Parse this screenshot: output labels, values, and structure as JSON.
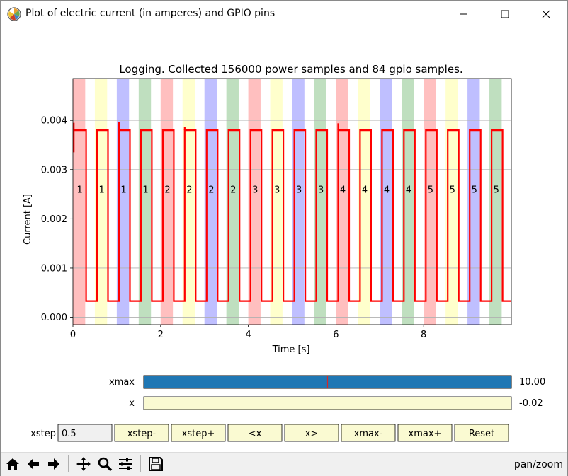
{
  "window": {
    "title": "Plot of electric current (in amperes) and GPIO pins",
    "icon": "matplotlib-icon",
    "controls": [
      "minimize-icon",
      "maximize-icon",
      "close-icon"
    ]
  },
  "chart_data": {
    "type": "line",
    "title": "Logging. Collected 156000 power samples and 84 gpio samples.",
    "xlabel": "Time [s]",
    "ylabel": "Current [A]",
    "xlim": [
      0,
      10
    ],
    "ylim": [
      -0.00015,
      0.00485
    ],
    "xticks": [
      0,
      2,
      4,
      6,
      8
    ],
    "xtick_labels": [
      "0",
      "2",
      "4",
      "6",
      "8"
    ],
    "yticks": [
      0.0,
      0.001,
      0.002,
      0.003,
      0.004
    ],
    "ytick_labels": [
      "0.000",
      "0.001",
      "0.002",
      "0.003",
      "0.004"
    ],
    "grid": "horizontal",
    "series": [
      {
        "color": "#ff0000",
        "high_value": 0.0038,
        "low_value": 0.00033,
        "pulses": [
          [
            0.02,
            0.3
          ],
          [
            0.55,
            0.8
          ],
          [
            1.05,
            1.3
          ],
          [
            1.55,
            1.8
          ],
          [
            2.05,
            2.3
          ],
          [
            2.55,
            2.8
          ],
          [
            3.05,
            3.3
          ],
          [
            3.55,
            3.8
          ],
          [
            4.05,
            4.3
          ],
          [
            4.55,
            4.8
          ],
          [
            5.05,
            5.3
          ],
          [
            5.55,
            5.8
          ],
          [
            6.05,
            6.3
          ],
          [
            6.55,
            6.8
          ],
          [
            7.05,
            7.3
          ],
          [
            7.55,
            7.8
          ],
          [
            8.05,
            8.3
          ],
          [
            8.55,
            8.8
          ],
          [
            9.05,
            9.3
          ],
          [
            9.55,
            9.8
          ]
        ],
        "spikes": [
          [
            0.02,
            0.00395
          ],
          [
            1.05,
            0.00397
          ],
          [
            2.55,
            0.00386
          ],
          [
            6.05,
            0.00394
          ]
        ],
        "start_dip": 0.00335
      }
    ],
    "gpio_spans": [
      {
        "x0": 0.0,
        "x1": 0.28,
        "color": "#ff8080",
        "label": "1"
      },
      {
        "x0": 0.5,
        "x1": 0.78,
        "color": "#ffff99",
        "label": "1"
      },
      {
        "x0": 1.0,
        "x1": 1.28,
        "color": "#8080ff",
        "label": "1"
      },
      {
        "x0": 1.5,
        "x1": 1.78,
        "color": "#80c080",
        "label": "1"
      },
      {
        "x0": 2.0,
        "x1": 2.28,
        "color": "#ff8080",
        "label": "2"
      },
      {
        "x0": 2.5,
        "x1": 2.78,
        "color": "#ffff99",
        "label": "2"
      },
      {
        "x0": 3.0,
        "x1": 3.28,
        "color": "#8080ff",
        "label": "2"
      },
      {
        "x0": 3.5,
        "x1": 3.78,
        "color": "#80c080",
        "label": "2"
      },
      {
        "x0": 4.0,
        "x1": 4.28,
        "color": "#ff8080",
        "label": "3"
      },
      {
        "x0": 4.5,
        "x1": 4.78,
        "color": "#ffff99",
        "label": "3"
      },
      {
        "x0": 5.0,
        "x1": 5.28,
        "color": "#8080ff",
        "label": "3"
      },
      {
        "x0": 5.5,
        "x1": 5.78,
        "color": "#80c080",
        "label": "3"
      },
      {
        "x0": 6.0,
        "x1": 6.28,
        "color": "#ff8080",
        "label": "4"
      },
      {
        "x0": 6.5,
        "x1": 6.78,
        "color": "#ffff99",
        "label": "4"
      },
      {
        "x0": 7.0,
        "x1": 7.28,
        "color": "#8080ff",
        "label": "4"
      },
      {
        "x0": 7.5,
        "x1": 7.78,
        "color": "#80c080",
        "label": "4"
      },
      {
        "x0": 8.0,
        "x1": 8.28,
        "color": "#ff8080",
        "label": "5"
      },
      {
        "x0": 8.5,
        "x1": 8.78,
        "color": "#ffff99",
        "label": "5"
      },
      {
        "x0": 9.0,
        "x1": 9.28,
        "color": "#8080ff",
        "label": "5"
      },
      {
        "x0": 9.5,
        "x1": 9.78,
        "color": "#80c080",
        "label": "5"
      }
    ],
    "gpio_label_y": 0.0026
  },
  "controls": {
    "sliders": [
      {
        "name": "xmax",
        "label": "xmax",
        "value_text": "10.00",
        "fill_fraction": 1.0,
        "marker_fraction": 0.5,
        "fill_color": "#1f77b4",
        "track_color": "#fafad2"
      },
      {
        "name": "x",
        "label": "x",
        "value_text": "-0.02",
        "fill_fraction": 0.0,
        "fill_color": "#1f77b4",
        "track_color": "#fafad2"
      }
    ],
    "xstep": {
      "label": "xstep",
      "value": "0.5"
    },
    "buttons": [
      {
        "name": "xstep-minus",
        "label": "xstep-"
      },
      {
        "name": "xstep-plus",
        "label": "xstep+"
      },
      {
        "name": "pan-left",
        "label": "<x"
      },
      {
        "name": "pan-right",
        "label": "x>"
      },
      {
        "name": "xmax-minus",
        "label": "xmax-"
      },
      {
        "name": "xmax-plus",
        "label": "xmax+"
      },
      {
        "name": "reset",
        "label": "Reset"
      }
    ],
    "button_color": "#fafad2"
  },
  "toolbar": {
    "items": [
      "home-icon",
      "back-icon",
      "forward-icon",
      "pan-icon",
      "zoom-icon",
      "configure-subplots-icon",
      "save-icon"
    ],
    "mode": "pan/zoom"
  }
}
